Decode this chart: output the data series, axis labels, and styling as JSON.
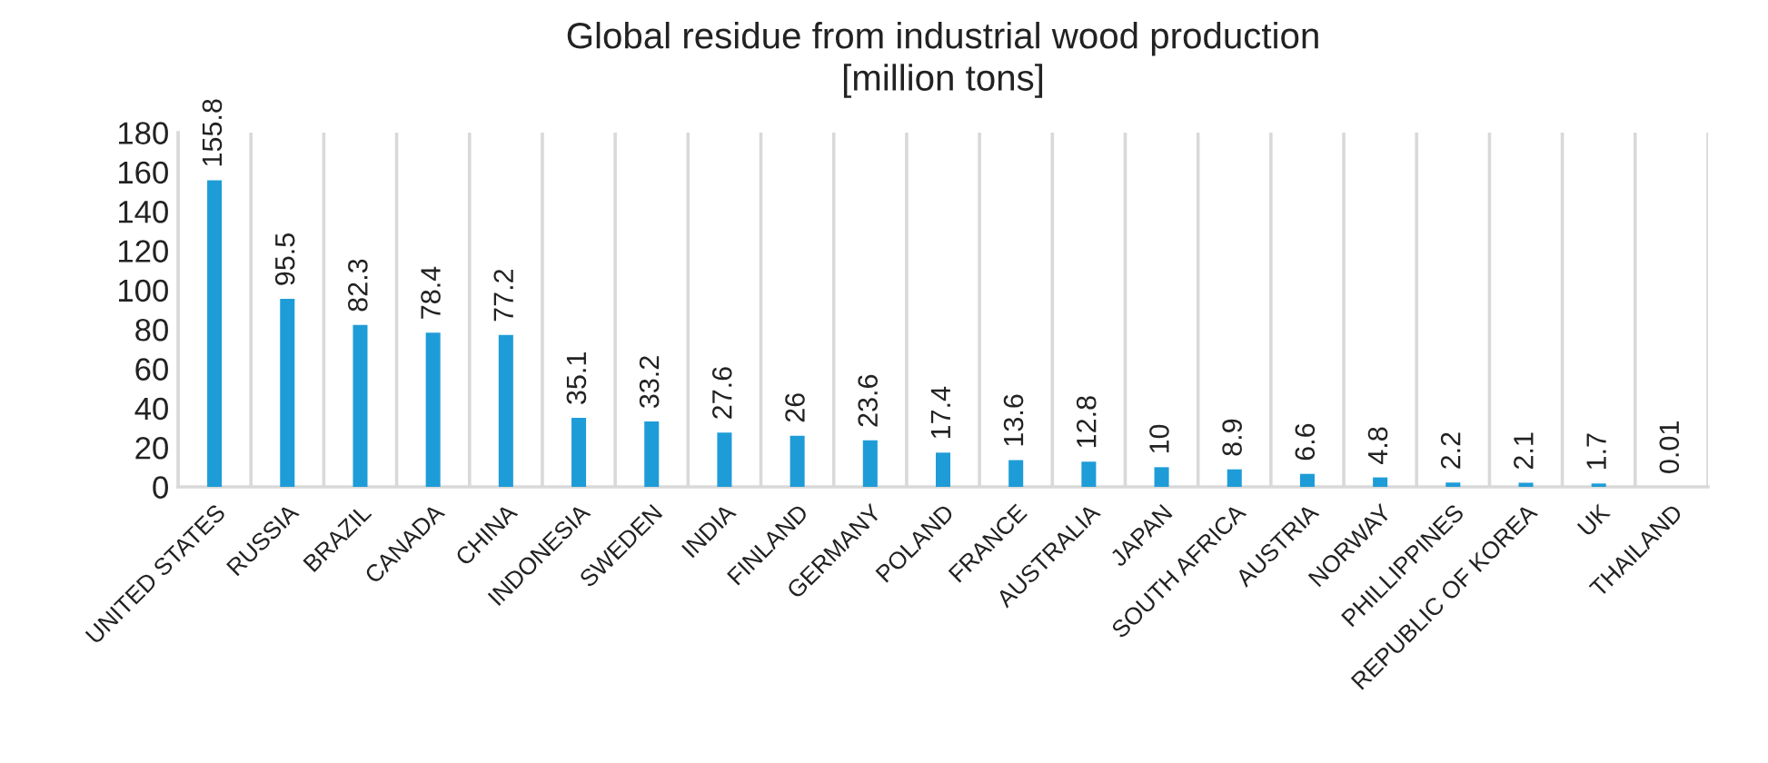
{
  "chart_data": {
    "type": "bar",
    "title": "Global residue from industrial wood production\n[million tons]",
    "categories": [
      "UNITED STATES",
      "RUSSIA",
      "BRAZIL",
      "CANADA",
      "CHINA",
      "INDONESIA",
      "SWEDEN",
      "INDIA",
      "FINLAND",
      "GERMANY",
      "POLAND",
      "FRANCE",
      "AUSTRALIA",
      "JAPAN",
      "SOUTH AFRICA",
      "AUSTRIA",
      "NORWAY",
      "PHILLIPPINES",
      "REPUBLIC OF KOREA",
      "UK",
      "THAILAND"
    ],
    "values": [
      155.8,
      95.5,
      82.3,
      78.4,
      77.2,
      35.1,
      33.2,
      27.6,
      26,
      23.6,
      17.4,
      13.6,
      12.8,
      10,
      8.9,
      6.6,
      4.8,
      2.2,
      2.1,
      1.7,
      0.01
    ],
    "color": "#1e9cd7",
    "ylim": [
      0,
      180
    ],
    "yticks": [
      0,
      20,
      40,
      60,
      80,
      100,
      120,
      140,
      160,
      180
    ],
    "grid": "x",
    "data_labels": true
  }
}
